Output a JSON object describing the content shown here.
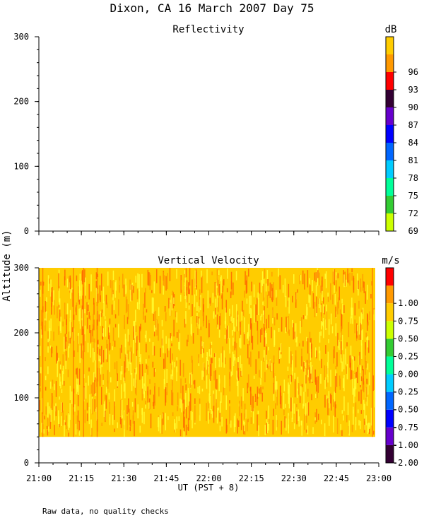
{
  "title": "Dixon, CA 16 March 2007  Day  75",
  "ylabel": "Altitude (m)",
  "xlabel": "UT  (PST + 8)",
  "footnote": "Raw data, no quality checks",
  "chart_data": [
    {
      "type": "heatmap",
      "title": "Reflectivity",
      "colorbar_unit": "dB",
      "ylim": [
        0,
        300
      ],
      "y_ticks": [
        "0",
        "100",
        "200",
        "300"
      ],
      "x_ticks": [
        "21:00",
        "21:15",
        "21:30",
        "21:45",
        "22:00",
        "22:15",
        "22:30",
        "22:45",
        "23:00"
      ],
      "colorbar_labels": [
        "69",
        "72",
        "75",
        "78",
        "81",
        "84",
        "87",
        "90",
        "93",
        "96"
      ],
      "colorbar_colors": [
        "#ccff00",
        "#33cc33",
        "#00ff99",
        "#00ccff",
        "#0066ff",
        "#0000ff",
        "#6600cc",
        "#330033",
        "#ff0000",
        "#ff9900",
        "#ffcc00"
      ],
      "values": []
    },
    {
      "type": "heatmap",
      "title": "Vertical Velocity",
      "colorbar_unit": "m/s",
      "ylim": [
        0,
        300
      ],
      "data_altitude_range": [
        40,
        300
      ],
      "x_range": [
        "21:00",
        "23:00"
      ],
      "y_ticks": [
        "0",
        "100",
        "200",
        "300"
      ],
      "x_ticks": [
        "21:00",
        "21:15",
        "21:30",
        "21:45",
        "22:00",
        "22:15",
        "22:30",
        "22:45",
        "23:00"
      ],
      "colorbar_labels": [
        "-2.00",
        "-1.00",
        "-0.75",
        "-0.50",
        "-0.25",
        "0.00",
        "0.25",
        "0.50",
        "0.75",
        "1.00"
      ],
      "colorbar_colors": [
        "#330033",
        "#6600cc",
        "#0000ff",
        "#0066ff",
        "#00ccff",
        "#00ff99",
        "#33cc33",
        "#ccff00",
        "#ffcc00",
        "#ff9900",
        "#ff0000"
      ],
      "dominant_color": "#ffcc00",
      "streak_colors": [
        "#ff6600",
        "#ff9900",
        "#ffff33"
      ]
    }
  ]
}
